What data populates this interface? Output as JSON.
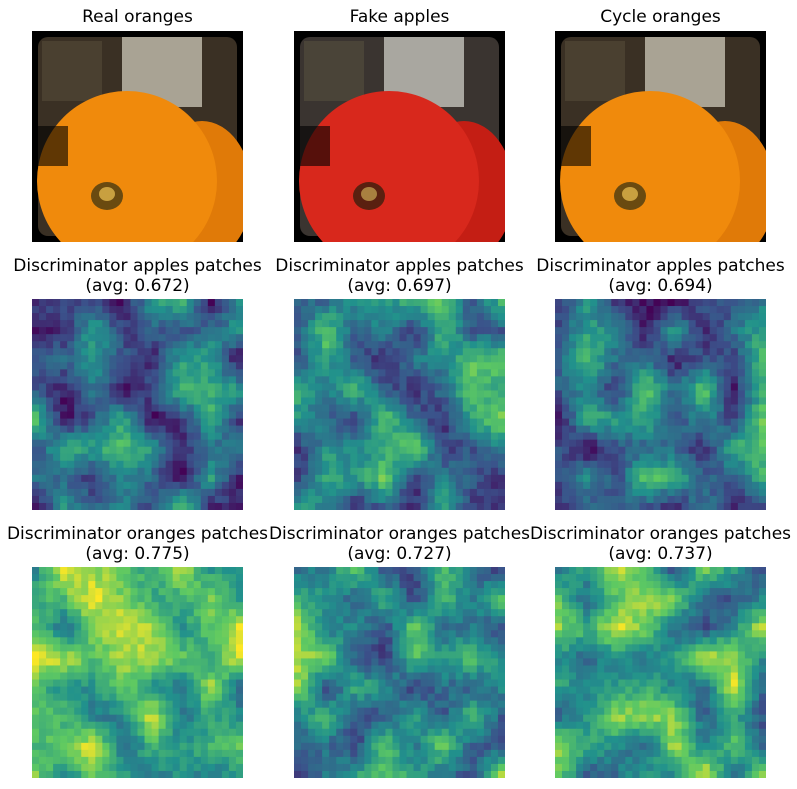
{
  "figure": {
    "rows": [
      {
        "kind": "photo",
        "panels": [
          {
            "title": "Real oranges",
            "tint": "orange"
          },
          {
            "title": "Fake apples",
            "tint": "red"
          },
          {
            "title": "Cycle oranges",
            "tint": "orange"
          }
        ]
      },
      {
        "kind": "heatmap",
        "panels": [
          {
            "title": "Discriminator apples patches",
            "subtitle": "(avg: 0.672)"
          },
          {
            "title": "Discriminator apples patches",
            "subtitle": "(avg: 0.697)"
          },
          {
            "title": "Discriminator apples patches",
            "subtitle": "(avg: 0.694)"
          }
        ]
      },
      {
        "kind": "heatmap",
        "panels": [
          {
            "title": "Discriminator oranges patches",
            "subtitle": "(avg: 0.775)"
          },
          {
            "title": "Discriminator oranges patches",
            "subtitle": "(avg: 0.727)"
          },
          {
            "title": "Discriminator oranges patches",
            "subtitle": "(avg: 0.737)"
          }
        ]
      }
    ],
    "colormap": "viridis",
    "colors": {
      "viridis_low": "#440154",
      "viridis_mid": "#21918c",
      "viridis_high": "#fde725",
      "orange": "#f08a0c",
      "red": "#d8281c",
      "background": "#000000"
    }
  }
}
